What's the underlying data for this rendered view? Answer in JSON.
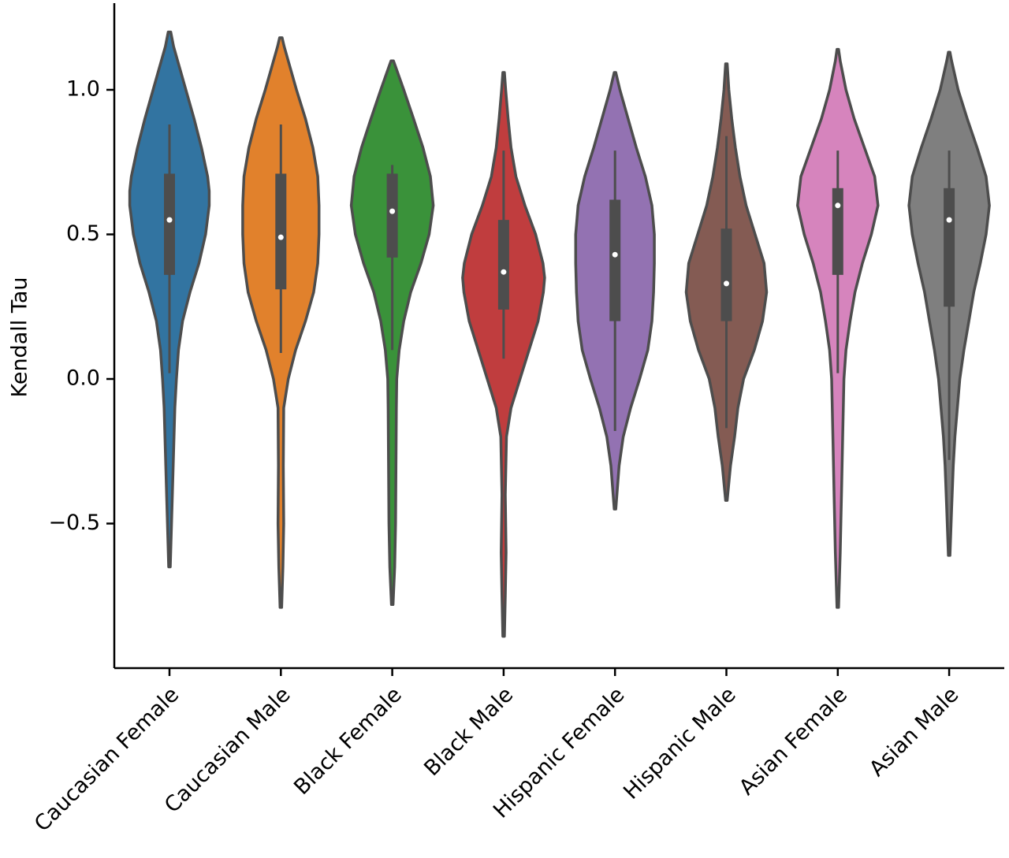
{
  "chart_data": {
    "type": "violin",
    "title": "",
    "xlabel": "",
    "ylabel": "Kendall Tau",
    "ylim": [
      -1.0,
      1.28
    ],
    "yticks": [
      -0.5,
      0.0,
      0.5,
      1.0
    ],
    "ytick_labels": [
      "−0.5",
      "0.0",
      "0.5",
      "1.0"
    ],
    "grid": false,
    "legend": "none",
    "categories": [
      "Caucasian Female",
      "Caucasian Male",
      "Black Female",
      "Black Male",
      "Hispanic Female",
      "Hispanic Male",
      "Asian Female",
      "Asian Male"
    ],
    "series": [
      {
        "color": "#3274a1",
        "min": -0.65,
        "max": 1.2,
        "q1": 0.36,
        "median": 0.55,
        "q3": 0.71,
        "whisker_low": 0.02,
        "whisker_high": 0.88,
        "density": [
          [
            -0.65,
            0.02
          ],
          [
            -0.5,
            0.05
          ],
          [
            -0.3,
            0.09
          ],
          [
            -0.1,
            0.13
          ],
          [
            0.0,
            0.17
          ],
          [
            0.1,
            0.22
          ],
          [
            0.2,
            0.32
          ],
          [
            0.3,
            0.5
          ],
          [
            0.4,
            0.72
          ],
          [
            0.5,
            0.88
          ],
          [
            0.6,
            0.97
          ],
          [
            0.65,
            0.97
          ],
          [
            0.7,
            0.93
          ],
          [
            0.8,
            0.78
          ],
          [
            0.9,
            0.6
          ],
          [
            1.0,
            0.4
          ],
          [
            1.1,
            0.2
          ],
          [
            1.15,
            0.1
          ],
          [
            1.2,
            0.03
          ]
        ]
      },
      {
        "color": "#e1812c",
        "min": -0.79,
        "max": 1.18,
        "q1": 0.31,
        "median": 0.49,
        "q3": 0.71,
        "whisker_low": 0.09,
        "whisker_high": 0.88,
        "density": [
          [
            -0.79,
            0.02
          ],
          [
            -0.65,
            0.05
          ],
          [
            -0.5,
            0.07
          ],
          [
            -0.3,
            0.06
          ],
          [
            -0.1,
            0.07
          ],
          [
            0.0,
            0.18
          ],
          [
            0.1,
            0.36
          ],
          [
            0.2,
            0.6
          ],
          [
            0.3,
            0.8
          ],
          [
            0.4,
            0.9
          ],
          [
            0.5,
            0.93
          ],
          [
            0.6,
            0.93
          ],
          [
            0.7,
            0.9
          ],
          [
            0.8,
            0.78
          ],
          [
            0.9,
            0.6
          ],
          [
            1.0,
            0.38
          ],
          [
            1.1,
            0.18
          ],
          [
            1.15,
            0.08
          ],
          [
            1.18,
            0.03
          ]
        ]
      },
      {
        "color": "#3a923a",
        "min": -0.78,
        "max": 1.1,
        "q1": 0.42,
        "median": 0.58,
        "q3": 0.71,
        "whisker_low": 0.1,
        "whisker_high": 0.74,
        "density": [
          [
            -0.78,
            0.02
          ],
          [
            -0.65,
            0.06
          ],
          [
            -0.5,
            0.08
          ],
          [
            -0.3,
            0.09
          ],
          [
            -0.1,
            0.1
          ],
          [
            0.0,
            0.11
          ],
          [
            0.1,
            0.17
          ],
          [
            0.2,
            0.28
          ],
          [
            0.3,
            0.45
          ],
          [
            0.4,
            0.7
          ],
          [
            0.5,
            0.9
          ],
          [
            0.6,
            1.0
          ],
          [
            0.7,
            0.93
          ],
          [
            0.8,
            0.75
          ],
          [
            0.9,
            0.52
          ],
          [
            1.0,
            0.28
          ],
          [
            1.08,
            0.08
          ],
          [
            1.1,
            0.03
          ]
        ]
      },
      {
        "color": "#c03d3e",
        "min": -0.89,
        "max": 1.06,
        "q1": 0.24,
        "median": 0.37,
        "q3": 0.55,
        "whisker_low": 0.07,
        "whisker_high": 0.79,
        "density": [
          [
            -0.89,
            0.02
          ],
          [
            -0.75,
            0.04
          ],
          [
            -0.6,
            0.06
          ],
          [
            -0.4,
            0.04
          ],
          [
            -0.2,
            0.07
          ],
          [
            -0.1,
            0.18
          ],
          [
            0.0,
            0.4
          ],
          [
            0.1,
            0.62
          ],
          [
            0.2,
            0.84
          ],
          [
            0.3,
            0.97
          ],
          [
            0.35,
            1.0
          ],
          [
            0.4,
            0.96
          ],
          [
            0.5,
            0.78
          ],
          [
            0.6,
            0.52
          ],
          [
            0.7,
            0.3
          ],
          [
            0.8,
            0.18
          ],
          [
            0.9,
            0.11
          ],
          [
            1.0,
            0.05
          ],
          [
            1.06,
            0.02
          ]
        ]
      },
      {
        "color": "#9372b2",
        "min": -0.45,
        "max": 1.06,
        "q1": 0.2,
        "median": 0.43,
        "q3": 0.62,
        "whisker_low": -0.18,
        "whisker_high": 0.79,
        "density": [
          [
            -0.45,
            0.02
          ],
          [
            -0.3,
            0.1
          ],
          [
            -0.2,
            0.2
          ],
          [
            -0.1,
            0.38
          ],
          [
            0.0,
            0.6
          ],
          [
            0.1,
            0.8
          ],
          [
            0.2,
            0.9
          ],
          [
            0.3,
            0.94
          ],
          [
            0.4,
            0.96
          ],
          [
            0.5,
            0.96
          ],
          [
            0.6,
            0.9
          ],
          [
            0.7,
            0.74
          ],
          [
            0.8,
            0.52
          ],
          [
            0.9,
            0.32
          ],
          [
            1.0,
            0.12
          ],
          [
            1.06,
            0.02
          ]
        ]
      },
      {
        "color": "#845b53",
        "min": -0.42,
        "max": 1.09,
        "q1": 0.2,
        "median": 0.33,
        "q3": 0.52,
        "whisker_low": -0.17,
        "whisker_high": 0.84,
        "density": [
          [
            -0.42,
            0.02
          ],
          [
            -0.3,
            0.1
          ],
          [
            -0.2,
            0.2
          ],
          [
            -0.1,
            0.28
          ],
          [
            0.0,
            0.42
          ],
          [
            0.1,
            0.68
          ],
          [
            0.2,
            0.88
          ],
          [
            0.3,
            0.98
          ],
          [
            0.4,
            0.92
          ],
          [
            0.5,
            0.7
          ],
          [
            0.6,
            0.48
          ],
          [
            0.7,
            0.33
          ],
          [
            0.8,
            0.22
          ],
          [
            0.9,
            0.13
          ],
          [
            1.0,
            0.06
          ],
          [
            1.09,
            0.02
          ]
        ]
      },
      {
        "color": "#d684bd",
        "min": -0.79,
        "max": 1.14,
        "q1": 0.36,
        "median": 0.6,
        "q3": 0.66,
        "whisker_low": 0.02,
        "whisker_high": 0.79,
        "density": [
          [
            -0.79,
            0.02
          ],
          [
            -0.6,
            0.06
          ],
          [
            -0.4,
            0.09
          ],
          [
            -0.2,
            0.12
          ],
          [
            0.0,
            0.15
          ],
          [
            0.1,
            0.2
          ],
          [
            0.2,
            0.3
          ],
          [
            0.3,
            0.42
          ],
          [
            0.4,
            0.6
          ],
          [
            0.5,
            0.82
          ],
          [
            0.6,
            0.98
          ],
          [
            0.7,
            0.9
          ],
          [
            0.8,
            0.65
          ],
          [
            0.9,
            0.4
          ],
          [
            1.0,
            0.2
          ],
          [
            1.1,
            0.06
          ],
          [
            1.14,
            0.02
          ]
        ]
      },
      {
        "color": "#7f7f7f",
        "min": -0.61,
        "max": 1.13,
        "q1": 0.25,
        "median": 0.55,
        "q3": 0.66,
        "whisker_low": -0.28,
        "whisker_high": 0.79,
        "density": [
          [
            -0.61,
            0.02
          ],
          [
            -0.45,
            0.06
          ],
          [
            -0.3,
            0.1
          ],
          [
            -0.2,
            0.14
          ],
          [
            -0.1,
            0.2
          ],
          [
            0.0,
            0.26
          ],
          [
            0.1,
            0.36
          ],
          [
            0.2,
            0.48
          ],
          [
            0.3,
            0.6
          ],
          [
            0.4,
            0.76
          ],
          [
            0.5,
            0.9
          ],
          [
            0.6,
            0.98
          ],
          [
            0.7,
            0.9
          ],
          [
            0.8,
            0.68
          ],
          [
            0.9,
            0.44
          ],
          [
            1.0,
            0.22
          ],
          [
            1.1,
            0.06
          ],
          [
            1.13,
            0.02
          ]
        ]
      }
    ]
  }
}
